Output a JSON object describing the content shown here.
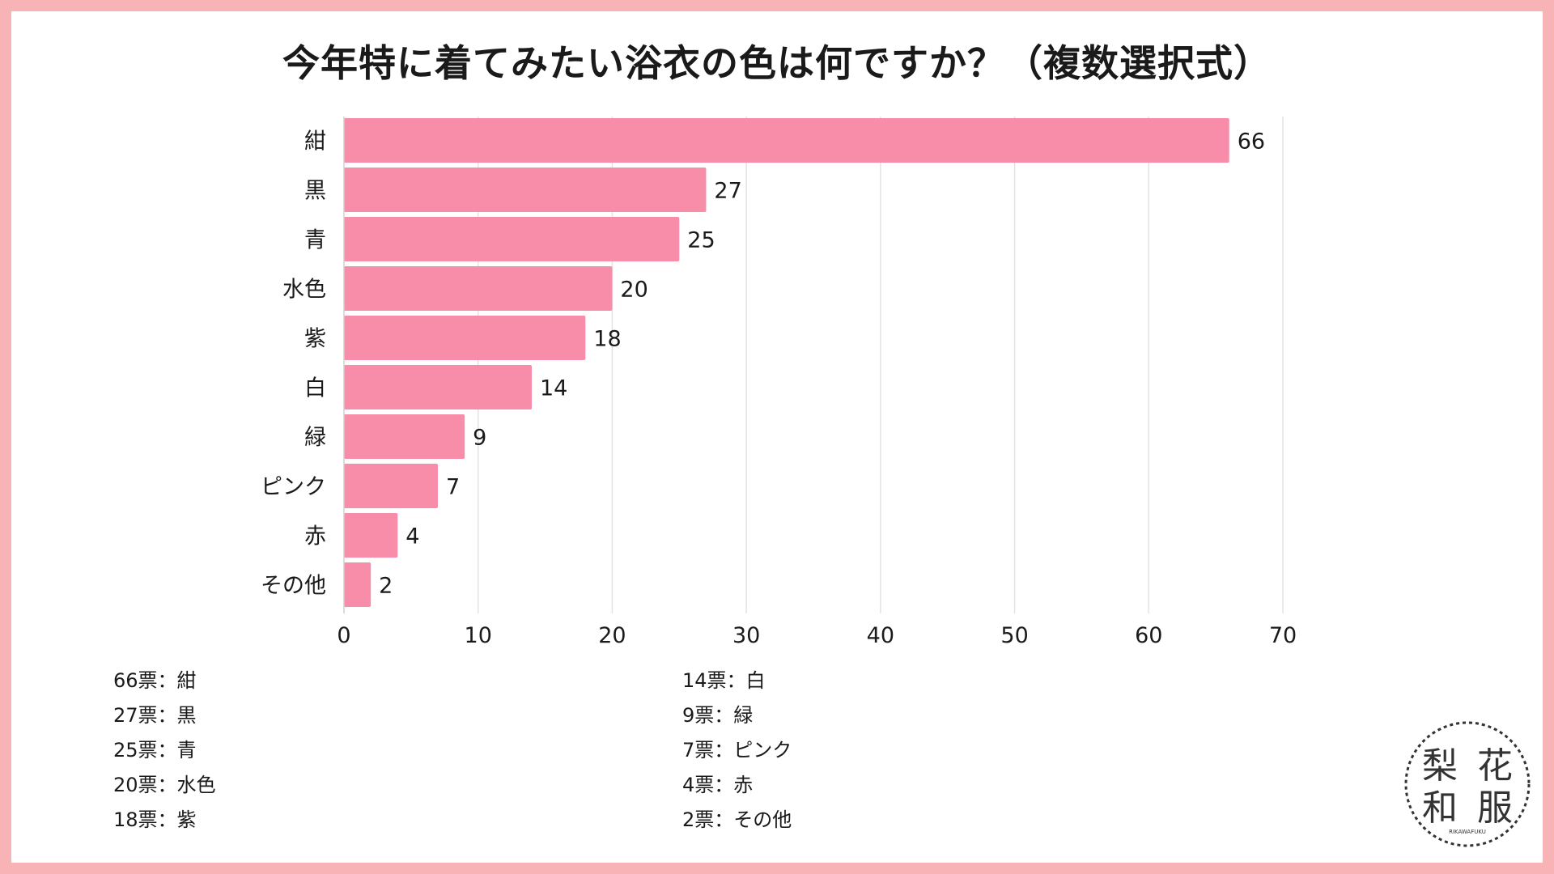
{
  "title": "今年特に着てみたい浴衣の色は何ですか？（複数選択式）",
  "colors": {
    "bar": "#f78da9",
    "frame": "#f7b3b6",
    "grid": "#e3e3e3"
  },
  "chart_data": {
    "type": "bar",
    "orientation": "horizontal",
    "title": "今年特に着てみたい浴衣の色は何ですか？（複数選択式）",
    "categories": [
      "紺",
      "黒",
      "青",
      "水色",
      "紫",
      "白",
      "緑",
      "ピンク",
      "赤",
      "その他"
    ],
    "values": [
      66,
      27,
      25,
      20,
      18,
      14,
      9,
      7,
      4,
      2
    ],
    "xlim": [
      0,
      70
    ],
    "xticks": [
      0,
      10,
      20,
      30,
      40,
      50,
      60,
      70
    ],
    "grid": true,
    "xlabel": "",
    "ylabel": ""
  },
  "summary": {
    "left": [
      "66票：紺",
      "27票：黒",
      "25票：青",
      "20票：水色",
      "18票：紫"
    ],
    "right": [
      "14票：白",
      "9票：緑",
      "7票：ピンク",
      "4票：赤",
      "2票：その他"
    ]
  },
  "logo": {
    "chars": [
      "梨",
      "花",
      "和",
      "服"
    ],
    "sub": "RIKAWAFUKU"
  }
}
